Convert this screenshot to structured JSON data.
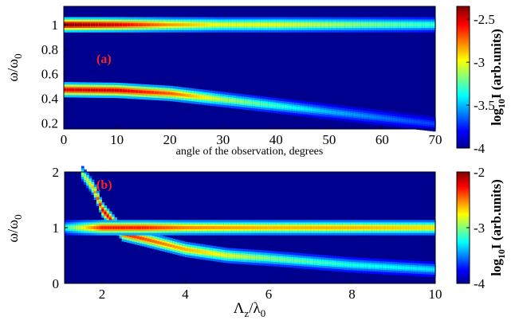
{
  "chart_data": [
    {
      "type": "heatmap",
      "panel_label": "(a)",
      "xlabel": "angle of the observation, degrees",
      "ylabel": {
        "main": "ω/",
        "sym": "ω",
        "sub": "0"
      },
      "xlim": [
        0,
        70
      ],
      "ylim": [
        0.15,
        1.15
      ],
      "xticks": [
        "0",
        "10",
        "20",
        "30",
        "40",
        "50",
        "60",
        "70"
      ],
      "xtick_values": [
        0,
        10,
        20,
        30,
        40,
        50,
        60,
        70
      ],
      "yticks": [
        "0.2",
        "0.4",
        "0.6",
        "0.8",
        "1"
      ],
      "ytick_values": [
        0.2,
        0.4,
        0.6,
        0.8,
        1.0
      ],
      "colorbar": {
        "label": {
          "pre": "log",
          "sub": "10",
          "post": "I (arb.units)"
        },
        "range": [
          -4,
          -2.35
        ],
        "ticks": [
          "-2.5",
          "-3",
          "-3.5",
          "-4"
        ],
        "tick_values": [
          -2.5,
          -3,
          -3.5,
          -4
        ]
      },
      "features": [
        {
          "name": "",
          "x": [
            0,
            10,
            20,
            30,
            40,
            50,
            60,
            70
          ],
          "y": [
            1.0,
            1.0,
            1.0,
            1.0,
            1.0,
            1.0,
            1.0,
            1.0
          ],
          "log10I": [
            -2.35,
            -2.5,
            -2.8,
            -3.0,
            -3.0,
            -3.1,
            -3.2,
            -3.3
          ]
        },
        {
          "name": "",
          "x": [
            0,
            10,
            20,
            30,
            40,
            50,
            60,
            70
          ],
          "y": [
            0.47,
            0.465,
            0.44,
            0.39,
            0.34,
            0.29,
            0.24,
            0.19
          ],
          "log10I": [
            -2.5,
            -2.5,
            -2.7,
            -3.1,
            -3.3,
            -3.5,
            -3.6,
            -3.7
          ]
        }
      ]
    },
    {
      "type": "heatmap",
      "panel_label": "(b)",
      "xlabel": {
        "main": "Λ",
        "sub1": "z",
        "mid": "/λ",
        "sub2": "0"
      },
      "ylabel": {
        "main": "ω/",
        "sym": "ω",
        "sub": "0"
      },
      "xlim": [
        1.1,
        10
      ],
      "ylim": [
        0,
        2
      ],
      "xticks": [
        "2",
        "4",
        "6",
        "8",
        "10"
      ],
      "xtick_values": [
        2,
        4,
        6,
        8,
        10
      ],
      "yticks": [
        "0",
        "1",
        "2"
      ],
      "ytick_values": [
        0,
        1,
        2
      ],
      "colorbar": {
        "label": {
          "pre": "log",
          "sub": "10",
          "post": "I (arb.units)"
        },
        "range": [
          -4,
          -2
        ],
        "ticks": [
          "-2",
          "-3",
          "-4"
        ],
        "tick_values": [
          -2,
          -3,
          -4
        ]
      },
      "features": [
        {
          "name": "",
          "x": [
            1.5,
            1.8,
            2,
            2.5,
            3,
            4,
            5,
            6,
            8,
            10
          ],
          "y": [
            2.0,
            1.7,
            1.33,
            0.89,
            0.8,
            0.61,
            0.5,
            0.45,
            0.33,
            0.25
          ],
          "log10I": [
            -3.0,
            -2.6,
            -2.2,
            -2.3,
            -2.4,
            -2.6,
            -2.8,
            -3.0,
            -3.2,
            -3.3
          ]
        },
        {
          "name": "",
          "x": [
            1.1,
            2,
            3,
            4,
            6,
            8,
            10
          ],
          "y": [
            1.0,
            1.0,
            1.0,
            1.0,
            1.0,
            1.0,
            1.0
          ],
          "log10I": [
            -3.2,
            -2.3,
            -2.3,
            -2.5,
            -2.6,
            -2.6,
            -2.7
          ]
        }
      ]
    }
  ]
}
